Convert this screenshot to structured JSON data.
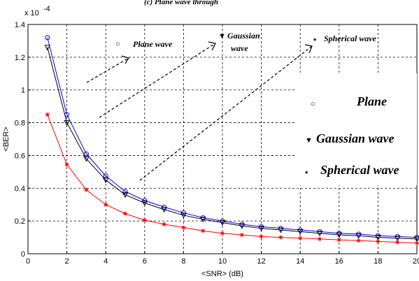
{
  "header_text": "(c) Plane wave through",
  "chart_data": {
    "type": "line",
    "xlabel": "<SNR> (dB)",
    "ylabel": "<BER>",
    "y_exponent": "x 10",
    "y_exponent_power": "-4",
    "xlim": [
      0,
      20
    ],
    "ylim": [
      0,
      1.4
    ],
    "xticks": [
      0,
      2,
      4,
      6,
      8,
      10,
      12,
      14,
      16,
      18,
      20
    ],
    "yticks": [
      0,
      0.2,
      0.4,
      0.6,
      0.8,
      1,
      1.2,
      1.4
    ],
    "ytick_labels": [
      "0",
      "0.2",
      "0.4",
      "0.6",
      "0.8",
      "1",
      "1.2",
      "1.4"
    ],
    "grid": true,
    "x": [
      1,
      2,
      3,
      4,
      5,
      6,
      7,
      8,
      9,
      10,
      11,
      12,
      13,
      14,
      15,
      16,
      17,
      18,
      19,
      20
    ],
    "series": [
      {
        "color": "#0000ff",
        "marker": "circle",
        "values": [
          1.32,
          0.85,
          0.61,
          0.475,
          0.38,
          0.325,
          0.285,
          0.25,
          0.22,
          0.2,
          0.18,
          0.165,
          0.155,
          0.145,
          0.135,
          0.125,
          0.12,
          0.11,
          0.105,
          0.1
        ]
      },
      {
        "color": "#000000",
        "marker": "triangle-down",
        "values": [
          1.26,
          0.8,
          0.58,
          0.45,
          0.36,
          0.31,
          0.27,
          0.235,
          0.21,
          0.19,
          0.17,
          0.155,
          0.145,
          0.135,
          0.125,
          0.115,
          0.11,
          0.1,
          0.095,
          0.09
        ]
      },
      {
        "color": "#ff0000",
        "marker": "star",
        "values": [
          0.85,
          0.545,
          0.39,
          0.3,
          0.245,
          0.205,
          0.18,
          0.16,
          0.14,
          0.125,
          0.115,
          0.105,
          0.1,
          0.095,
          0.09,
          0.085,
          0.08,
          0.075,
          0.07,
          0.065
        ]
      }
    ],
    "annotations": [
      {
        "id": "plane-small",
        "symbol": "○",
        "text": "Plane wave"
      },
      {
        "id": "gaussian-small",
        "symbol": "▼",
        "text": "Gaussian",
        "text2": "wave"
      },
      {
        "id": "spherical-small",
        "symbol": "*",
        "text": "Spherical wave"
      },
      {
        "id": "plane-large",
        "symbol": "○",
        "text": "Plane"
      },
      {
        "id": "gaussian-large",
        "symbol": "▼",
        "text": "Gaussian wave"
      },
      {
        "id": "spherical-large",
        "symbol": "*",
        "text": "Spherical wave"
      }
    ]
  }
}
